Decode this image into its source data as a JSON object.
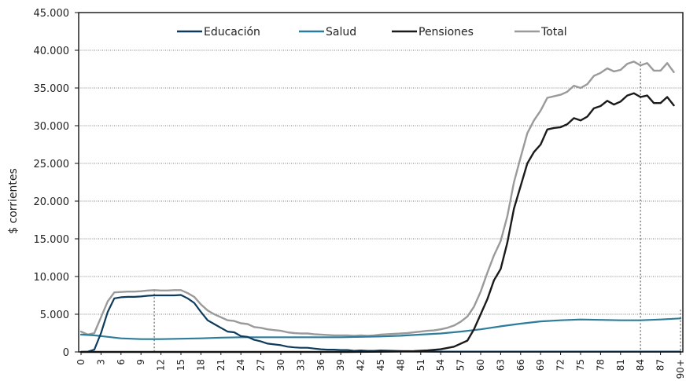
{
  "chart_data": {
    "type": "line",
    "title": "",
    "xlabel": "",
    "ylabel": "$ corrientes",
    "ylim": [
      0,
      45000
    ],
    "yticks": [
      0,
      5000,
      10000,
      15000,
      20000,
      25000,
      30000,
      35000,
      40000,
      45000
    ],
    "ytick_labels": [
      "0",
      "5.000",
      "10.000",
      "15.000",
      "20.000",
      "25.000",
      "30.000",
      "35.000",
      "40.000",
      "45.000"
    ],
    "x_tick_labels": [
      "0",
      "3",
      "6",
      "9",
      "12",
      "15",
      "18",
      "21",
      "24",
      "27",
      "30",
      "33",
      "36",
      "39",
      "42",
      "45",
      "48",
      "51",
      "54",
      "57",
      "60",
      "63",
      "66",
      "69",
      "72",
      "75",
      "78",
      "81",
      "84",
      "87",
      "90+"
    ],
    "x_tick_ages": [
      0,
      3,
      6,
      9,
      12,
      15,
      18,
      21,
      24,
      27,
      30,
      33,
      36,
      39,
      42,
      45,
      48,
      51,
      54,
      57,
      60,
      63,
      66,
      69,
      72,
      75,
      78,
      81,
      84,
      87,
      90
    ],
    "grid": "horizontal-dotted",
    "legend_position": "top",
    "reference_lines_x": [
      11,
      84,
      90
    ],
    "colors": {
      "Educación": "#0d3b5c",
      "Salud": "#2e7c9c",
      "Pensiones": "#1a1a1a",
      "Total": "#9a9a9a"
    },
    "series": [
      {
        "name": "Educación",
        "points": [
          [
            0,
            0
          ],
          [
            1,
            30
          ],
          [
            2,
            300
          ],
          [
            3,
            2500
          ],
          [
            4,
            5300
          ],
          [
            5,
            7100
          ],
          [
            6,
            7250
          ],
          [
            7,
            7300
          ],
          [
            8,
            7300
          ],
          [
            9,
            7350
          ],
          [
            10,
            7450
          ],
          [
            11,
            7500
          ],
          [
            12,
            7500
          ],
          [
            13,
            7500
          ],
          [
            14,
            7500
          ],
          [
            15,
            7550
          ],
          [
            16,
            7100
          ],
          [
            17,
            6500
          ],
          [
            18,
            5300
          ],
          [
            19,
            4200
          ],
          [
            20,
            3700
          ],
          [
            21,
            3200
          ],
          [
            22,
            2700
          ],
          [
            23,
            2600
          ],
          [
            24,
            2100
          ],
          [
            25,
            2000
          ],
          [
            26,
            1600
          ],
          [
            27,
            1400
          ],
          [
            28,
            1100
          ],
          [
            29,
            1000
          ],
          [
            30,
            900
          ],
          [
            31,
            700
          ],
          [
            32,
            600
          ],
          [
            33,
            550
          ],
          [
            34,
            550
          ],
          [
            35,
            450
          ],
          [
            36,
            350
          ],
          [
            37,
            300
          ],
          [
            38,
            300
          ],
          [
            39,
            250
          ],
          [
            40,
            250
          ],
          [
            41,
            150
          ],
          [
            42,
            200
          ],
          [
            43,
            150
          ],
          [
            44,
            150
          ],
          [
            45,
            200
          ],
          [
            46,
            180
          ],
          [
            47,
            150
          ],
          [
            48,
            130
          ],
          [
            49,
            100
          ],
          [
            50,
            80
          ],
          [
            51,
            60
          ],
          [
            52,
            50
          ],
          [
            54,
            40
          ],
          [
            60,
            40
          ],
          [
            70,
            40
          ],
          [
            80,
            40
          ],
          [
            90,
            40
          ]
        ]
      },
      {
        "name": "Salud",
        "points": [
          [
            0,
            2300
          ],
          [
            2,
            2200
          ],
          [
            3,
            2100
          ],
          [
            6,
            1800
          ],
          [
            9,
            1700
          ],
          [
            12,
            1700
          ],
          [
            15,
            1750
          ],
          [
            18,
            1800
          ],
          [
            21,
            1900
          ],
          [
            24,
            1950
          ],
          [
            27,
            1950
          ],
          [
            30,
            1950
          ],
          [
            33,
            1950
          ],
          [
            36,
            1950
          ],
          [
            39,
            1950
          ],
          [
            42,
            2000
          ],
          [
            45,
            2050
          ],
          [
            48,
            2150
          ],
          [
            51,
            2300
          ],
          [
            54,
            2450
          ],
          [
            57,
            2700
          ],
          [
            60,
            3000
          ],
          [
            63,
            3400
          ],
          [
            66,
            3750
          ],
          [
            69,
            4050
          ],
          [
            72,
            4200
          ],
          [
            75,
            4300
          ],
          [
            78,
            4250
          ],
          [
            81,
            4200
          ],
          [
            84,
            4200
          ],
          [
            87,
            4300
          ],
          [
            90,
            4450
          ]
        ]
      },
      {
        "name": "Pensiones",
        "points": [
          [
            0,
            0
          ],
          [
            40,
            0
          ],
          [
            45,
            30
          ],
          [
            50,
            100
          ],
          [
            52,
            200
          ],
          [
            54,
            350
          ],
          [
            56,
            700
          ],
          [
            58,
            1500
          ],
          [
            59,
            3000
          ],
          [
            60,
            5000
          ],
          [
            61,
            7000
          ],
          [
            62,
            9500
          ],
          [
            63,
            11000
          ],
          [
            64,
            14500
          ],
          [
            65,
            19000
          ],
          [
            66,
            22000
          ],
          [
            67,
            25000
          ],
          [
            68,
            26500
          ],
          [
            69,
            27500
          ],
          [
            70,
            29500
          ],
          [
            71,
            29700
          ],
          [
            72,
            29800
          ],
          [
            73,
            30200
          ],
          [
            74,
            31000
          ],
          [
            75,
            30700
          ],
          [
            76,
            31200
          ],
          [
            77,
            32300
          ],
          [
            78,
            32600
          ],
          [
            79,
            33300
          ],
          [
            80,
            32800
          ],
          [
            81,
            33200
          ],
          [
            82,
            34000
          ],
          [
            83,
            34300
          ],
          [
            84,
            33800
          ],
          [
            85,
            34000
          ],
          [
            86,
            33000
          ],
          [
            87,
            33000
          ],
          [
            88,
            33800
          ],
          [
            89,
            32700
          ]
        ]
      },
      {
        "name": "Total",
        "points": [
          [
            0,
            2700
          ],
          [
            1,
            2300
          ],
          [
            2,
            2500
          ],
          [
            3,
            4600
          ],
          [
            4,
            6700
          ],
          [
            5,
            7900
          ],
          [
            6,
            7950
          ],
          [
            7,
            8000
          ],
          [
            8,
            8000
          ],
          [
            9,
            8050
          ],
          [
            10,
            8150
          ],
          [
            11,
            8200
          ],
          [
            12,
            8150
          ],
          [
            13,
            8150
          ],
          [
            14,
            8200
          ],
          [
            15,
            8200
          ],
          [
            16,
            7800
          ],
          [
            17,
            7300
          ],
          [
            18,
            6300
          ],
          [
            19,
            5500
          ],
          [
            20,
            5000
          ],
          [
            21,
            4600
          ],
          [
            22,
            4200
          ],
          [
            23,
            4100
          ],
          [
            24,
            3800
          ],
          [
            25,
            3700
          ],
          [
            26,
            3300
          ],
          [
            27,
            3200
          ],
          [
            28,
            3000
          ],
          [
            29,
            2900
          ],
          [
            30,
            2800
          ],
          [
            31,
            2600
          ],
          [
            32,
            2500
          ],
          [
            33,
            2450
          ],
          [
            34,
            2450
          ],
          [
            35,
            2350
          ],
          [
            36,
            2300
          ],
          [
            37,
            2250
          ],
          [
            38,
            2200
          ],
          [
            39,
            2200
          ],
          [
            40,
            2200
          ],
          [
            41,
            2150
          ],
          [
            42,
            2200
          ],
          [
            43,
            2150
          ],
          [
            44,
            2200
          ],
          [
            45,
            2300
          ],
          [
            46,
            2350
          ],
          [
            47,
            2400
          ],
          [
            48,
            2450
          ],
          [
            49,
            2500
          ],
          [
            50,
            2600
          ],
          [
            51,
            2700
          ],
          [
            52,
            2800
          ],
          [
            53,
            2850
          ],
          [
            54,
            3000
          ],
          [
            55,
            3200
          ],
          [
            56,
            3500
          ],
          [
            57,
            4000
          ],
          [
            58,
            4700
          ],
          [
            59,
            6000
          ],
          [
            60,
            8000
          ],
          [
            61,
            10500
          ],
          [
            62,
            12800
          ],
          [
            63,
            14700
          ],
          [
            64,
            18000
          ],
          [
            65,
            22500
          ],
          [
            66,
            25800
          ],
          [
            67,
            29000
          ],
          [
            68,
            30700
          ],
          [
            69,
            32000
          ],
          [
            70,
            33700
          ],
          [
            71,
            33900
          ],
          [
            72,
            34100
          ],
          [
            73,
            34500
          ],
          [
            74,
            35300
          ],
          [
            75,
            35000
          ],
          [
            76,
            35500
          ],
          [
            77,
            36600
          ],
          [
            78,
            37000
          ],
          [
            79,
            37600
          ],
          [
            80,
            37200
          ],
          [
            81,
            37400
          ],
          [
            82,
            38200
          ],
          [
            83,
            38500
          ],
          [
            84,
            38000
          ],
          [
            85,
            38300
          ],
          [
            86,
            37300
          ],
          [
            87,
            37300
          ],
          [
            88,
            38300
          ],
          [
            89,
            37100
          ]
        ]
      }
    ]
  }
}
